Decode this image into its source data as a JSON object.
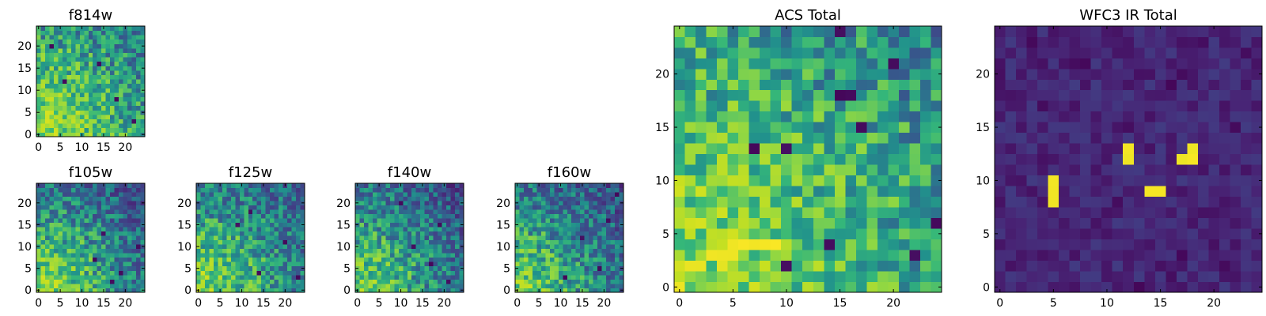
{
  "chart_data": [
    {
      "type": "heatmap",
      "title": "f814w",
      "grid_size": 25,
      "x_ticks": [
        0,
        5,
        10,
        15,
        20
      ],
      "y_ticks": [
        0,
        5,
        10,
        15,
        20
      ],
      "xlim": [
        -0.5,
        24.5
      ],
      "ylim": [
        -0.5,
        24.5
      ],
      "colormap": "viridis",
      "value_range": [
        0,
        1
      ],
      "features": [
        {
          "kind": "gradient",
          "from": "lower-left",
          "strength": 0.4
        },
        {
          "kind": "base_level",
          "level": 0.6
        },
        {
          "kind": "dark_pixels",
          "locations": [
            [
              14,
              16
            ],
            [
              22,
              3
            ],
            [
              6,
              12
            ],
            [
              18,
              8
            ],
            [
              3,
              20
            ]
          ]
        }
      ]
    },
    {
      "type": "heatmap",
      "title": "f105w",
      "grid_size": 25,
      "x_ticks": [
        0,
        5,
        10,
        15,
        20
      ],
      "y_ticks": [
        0,
        5,
        10,
        15,
        20
      ],
      "xlim": [
        -0.5,
        24.5
      ],
      "ylim": [
        -0.5,
        24.5
      ],
      "colormap": "viridis",
      "value_range": [
        0,
        1
      ],
      "features": [
        {
          "kind": "gradient",
          "from": "lower-left",
          "strength": 0.55
        },
        {
          "kind": "base_level",
          "level": 0.5
        },
        {
          "kind": "dark_pixels",
          "locations": [
            [
              19,
              4
            ],
            [
              17,
              2
            ],
            [
              13,
              7
            ],
            [
              23,
              10
            ],
            [
              15,
              13
            ]
          ]
        }
      ]
    },
    {
      "type": "heatmap",
      "title": "f125w",
      "grid_size": 25,
      "x_ticks": [
        0,
        5,
        10,
        15,
        20
      ],
      "y_ticks": [
        0,
        5,
        10,
        15,
        20
      ],
      "xlim": [
        -0.5,
        24.5
      ],
      "ylim": [
        -0.5,
        24.5
      ],
      "colormap": "viridis",
      "value_range": [
        0,
        1
      ],
      "features": [
        {
          "kind": "gradient",
          "from": "lower-left",
          "strength": 0.45
        },
        {
          "kind": "base_level",
          "level": 0.52
        },
        {
          "kind": "dark_pixels",
          "locations": [
            [
              14,
              4
            ],
            [
              20,
              11
            ],
            [
              9,
              15
            ],
            [
              23,
              3
            ],
            [
              12,
              18
            ]
          ]
        }
      ]
    },
    {
      "type": "heatmap",
      "title": "f140w",
      "grid_size": 25,
      "x_ticks": [
        0,
        5,
        10,
        15,
        20
      ],
      "y_ticks": [
        0,
        5,
        10,
        15,
        20
      ],
      "xlim": [
        -0.5,
        24.5
      ],
      "ylim": [
        -0.5,
        24.5
      ],
      "colormap": "viridis",
      "value_range": [
        0,
        1
      ],
      "features": [
        {
          "kind": "gradient",
          "from": "lower-left",
          "strength": 0.5
        },
        {
          "kind": "base_level",
          "level": 0.48
        },
        {
          "kind": "dark_pixels",
          "locations": [
            [
              19,
              15
            ],
            [
              17,
              6
            ],
            [
              21,
              2
            ],
            [
              13,
              10
            ],
            [
              10,
              20
            ]
          ]
        }
      ]
    },
    {
      "type": "heatmap",
      "title": "f160w",
      "grid_size": 25,
      "x_ticks": [
        0,
        5,
        10,
        15,
        20
      ],
      "y_ticks": [
        0,
        5,
        10,
        15,
        20
      ],
      "xlim": [
        -0.5,
        24.5
      ],
      "ylim": [
        -0.5,
        24.5
      ],
      "colormap": "viridis",
      "value_range": [
        0,
        1
      ],
      "features": [
        {
          "kind": "gradient",
          "from": "lower-left",
          "strength": 0.5
        },
        {
          "kind": "base_level",
          "level": 0.48
        },
        {
          "kind": "dark_pixels",
          "locations": [
            [
              19,
              5
            ],
            [
              15,
              12
            ],
            [
              21,
              16
            ],
            [
              11,
              3
            ],
            [
              23,
              22
            ]
          ]
        }
      ]
    },
    {
      "type": "heatmap",
      "title": "ACS Total",
      "grid_size": 25,
      "x_ticks": [
        0,
        5,
        10,
        15,
        20
      ],
      "y_ticks": [
        0,
        5,
        10,
        15,
        20
      ],
      "xlim": [
        -0.5,
        24.5
      ],
      "ylim": [
        -0.5,
        24.5
      ],
      "colormap": "viridis",
      "value_range": [
        0,
        1
      ],
      "features": [
        {
          "kind": "gradient",
          "from": "lower-left",
          "strength": 0.35
        },
        {
          "kind": "base_level",
          "level": 0.62
        },
        {
          "kind": "bright_block",
          "cells": [
            [
              5,
              4
            ],
            [
              6,
              4
            ],
            [
              7,
              4
            ],
            [
              8,
              4
            ],
            [
              9,
              4
            ],
            [
              3,
              3
            ],
            [
              4,
              3
            ],
            [
              5,
              3
            ]
          ]
        },
        {
          "kind": "dark_pixels",
          "locations": [
            [
              7,
              13
            ],
            [
              10,
              13
            ],
            [
              16,
              18
            ],
            [
              10,
              2
            ],
            [
              22,
              3
            ],
            [
              24,
              6
            ],
            [
              14,
              4
            ],
            [
              15,
              18
            ],
            [
              17,
              15
            ],
            [
              20,
              21
            ],
            [
              15,
              24
            ]
          ]
        }
      ]
    },
    {
      "type": "heatmap",
      "title": "WFC3 IR Total",
      "grid_size": 25,
      "x_ticks": [
        0,
        5,
        10,
        15,
        20
      ],
      "y_ticks": [
        0,
        5,
        10,
        15,
        20
      ],
      "xlim": [
        -0.5,
        24.5
      ],
      "ylim": [
        -0.5,
        24.5
      ],
      "colormap": "viridis",
      "value_range": [
        0,
        1
      ],
      "features": [
        {
          "kind": "base_level",
          "level": 0.14
        },
        {
          "kind": "dark_pixels",
          "locations": [
            [
              3,
              23
            ],
            [
              7,
              21
            ],
            [
              8,
              21
            ],
            [
              16,
              19
            ],
            [
              17,
              20
            ],
            [
              19,
              23
            ],
            [
              4,
              17
            ],
            [
              12,
              15
            ],
            [
              22,
              15
            ],
            [
              17,
              3
            ],
            [
              20,
              4
            ],
            [
              21,
              2
            ],
            [
              16,
              1
            ],
            [
              11,
              8
            ],
            [
              0,
              20
            ],
            [
              13,
              0
            ],
            [
              23,
              22
            ]
          ]
        },
        {
          "kind": "bright_cells",
          "cells": [
            [
              5,
              8
            ],
            [
              5,
              9
            ],
            [
              5,
              10
            ],
            [
              12,
              12
            ],
            [
              12,
              13
            ],
            [
              14,
              9
            ],
            [
              15,
              9
            ],
            [
              17,
              12
            ],
            [
              18,
              12
            ],
            [
              18,
              13
            ]
          ]
        }
      ]
    }
  ]
}
